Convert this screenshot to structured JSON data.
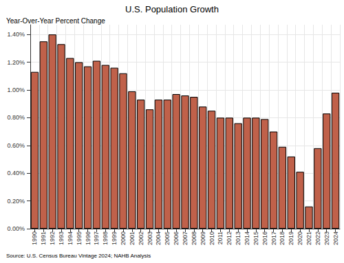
{
  "chart_data": {
    "type": "bar",
    "title": "U.S. Population Growth",
    "subtitle": "Year-Over-Year Percent Change",
    "source": "Source: U.S. Census Bureau Vintage 2024; NAHB Analysis",
    "categories": [
      "1990",
      "1991",
      "1992",
      "1993",
      "1994",
      "1995",
      "1996",
      "1997",
      "1998",
      "1999",
      "2000",
      "2001",
      "2002",
      "2003",
      "2004",
      "2005",
      "2006",
      "2007",
      "2008",
      "2009",
      "2010",
      "2011",
      "2012",
      "2013",
      "2014",
      "2015",
      "2016",
      "2017",
      "2018",
      "2019",
      "2020",
      "2021",
      "2022",
      "2023",
      "2024"
    ],
    "values": [
      1.13,
      1.35,
      1.4,
      1.33,
      1.23,
      1.2,
      1.17,
      1.21,
      1.18,
      1.16,
      1.12,
      0.99,
      0.93,
      0.86,
      0.93,
      0.93,
      0.97,
      0.96,
      0.95,
      0.88,
      0.85,
      0.8,
      0.8,
      0.76,
      0.8,
      0.8,
      0.79,
      0.7,
      0.59,
      0.52,
      0.41,
      0.16,
      0.58,
      0.83,
      0.98
    ],
    "color": "#c0614a",
    "ylim": [
      0,
      1.47
    ],
    "yticks": [
      {
        "value": 0,
        "label": "0.00%"
      },
      {
        "value": 0.2,
        "label": "0.20%"
      },
      {
        "value": 0.4,
        "label": "0.40%"
      },
      {
        "value": 0.6,
        "label": "0.60%"
      },
      {
        "value": 0.8,
        "label": "0.80%"
      },
      {
        "value": 1.0,
        "label": "1.00%"
      },
      {
        "value": 1.2,
        "label": "1.20%"
      },
      {
        "value": 1.4,
        "label": "1.40%"
      }
    ],
    "grid": true
  }
}
